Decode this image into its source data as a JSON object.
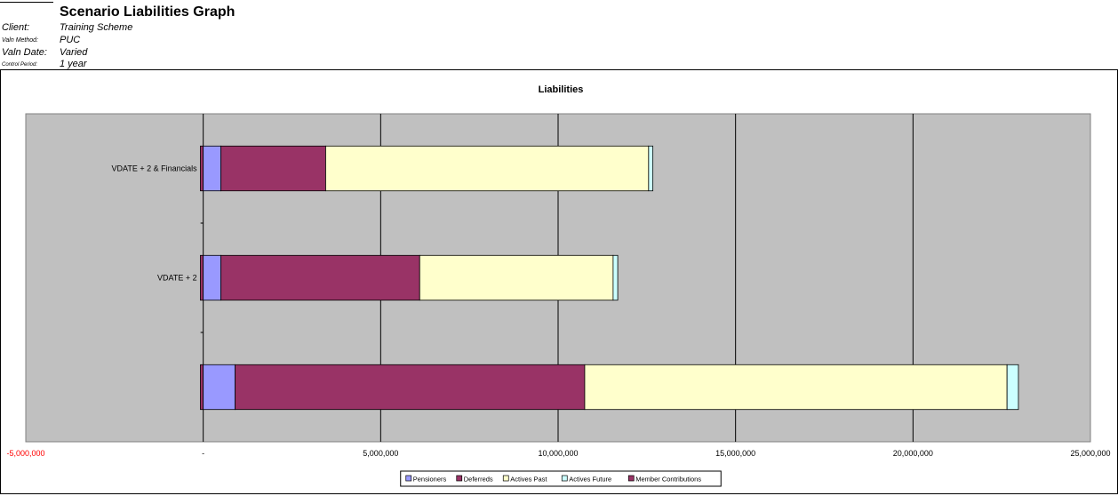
{
  "header": {
    "title": "Scenario Liabilities Graph",
    "meta": [
      {
        "label": "Client:",
        "value": "Training Scheme"
      },
      {
        "label": "Valn Method:",
        "value": "PUC"
      },
      {
        "label": "Valn Date:",
        "value": "Varied"
      },
      {
        "label": "Control Period:",
        "value": "1 year"
      }
    ]
  },
  "chart_data": {
    "type": "bar",
    "orientation": "horizontal",
    "stacked": true,
    "title": "Liabilities",
    "categories": [
      "",
      "VDATE + 2",
      "VDATE + 2 & Financials"
    ],
    "series": [
      {
        "name": "Member Contributions",
        "color": "#993366",
        "values": [
          -80000,
          -80000,
          -80000
        ]
      },
      {
        "name": "Pensioners",
        "color": "#9999ff",
        "values": [
          900000,
          500000,
          500000
        ]
      },
      {
        "name": "Deferreds",
        "color": "#993366",
        "values": [
          9850000,
          5600000,
          2950000
        ]
      },
      {
        "name": "Actives Past",
        "color": "#ffffcc",
        "values": [
          11900000,
          5450000,
          9100000
        ]
      },
      {
        "name": "Actives Future",
        "color": "#ccffff",
        "values": [
          320000,
          130000,
          120000
        ]
      }
    ],
    "legend_order": [
      "Pensioners",
      "Deferreds",
      "Actives Past",
      "Actives Future",
      "Member Contributions"
    ],
    "xlim": [
      -5000000,
      25000000
    ],
    "xticks": [
      {
        "value": -5000000,
        "label": "-5,000,000",
        "color": "#ff0000"
      },
      {
        "value": 0,
        "label": "-",
        "color": "#000000"
      },
      {
        "value": 5000000,
        "label": "5,000,000",
        "color": "#000000"
      },
      {
        "value": 10000000,
        "label": "10,000,000",
        "color": "#000000"
      },
      {
        "value": 15000000,
        "label": "15,000,000",
        "color": "#000000"
      },
      {
        "value": 20000000,
        "label": "20,000,000",
        "color": "#000000"
      },
      {
        "value": 25000000,
        "label": "25,000,000",
        "color": "#000000"
      }
    ],
    "grid": true,
    "legend_position": "bottom",
    "plot_background": "#c0c0c0"
  }
}
